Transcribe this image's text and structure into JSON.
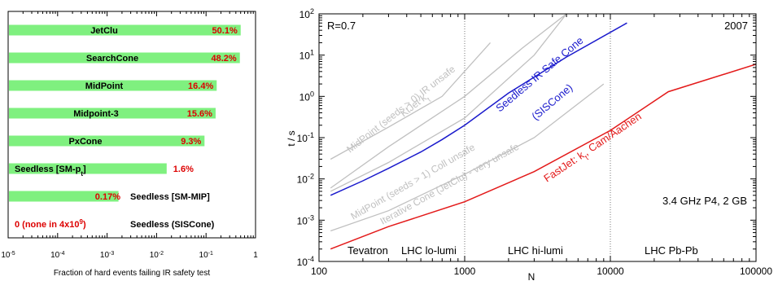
{
  "chart_data": [
    {
      "type": "bar",
      "orientation": "horizontal",
      "x_scale": "log",
      "xlim": [
        1e-05,
        1
      ],
      "xlabel": "Fraction of hard events failing IR safety test",
      "xticks": [
        {
          "value": 1e-05,
          "base": "10",
          "exp": "-5"
        },
        {
          "value": 0.0001,
          "base": "10",
          "exp": "-4"
        },
        {
          "value": 0.001,
          "base": "10",
          "exp": "-3"
        },
        {
          "value": 0.01,
          "base": "10",
          "exp": "-2"
        },
        {
          "value": 0.1,
          "base": "10",
          "exp": "-1"
        },
        {
          "value": 1,
          "base": "1",
          "exp": ""
        }
      ],
      "bar_color": "#7ff07f",
      "value_label_color": "#dd0000",
      "bars": [
        {
          "name": "JetClu",
          "sub": "",
          "value": 0.501,
          "value_label": "50.1%",
          "label_side": "inside"
        },
        {
          "name": "SearchCone",
          "sub": "",
          "value": 0.482,
          "value_label": "48.2%",
          "label_side": "inside"
        },
        {
          "name": "MidPoint",
          "sub": "",
          "value": 0.164,
          "value_label": "16.4%",
          "label_side": "inside"
        },
        {
          "name": "Midpoint-3",
          "sub": "",
          "value": 0.156,
          "value_label": "15.6%",
          "label_side": "inside"
        },
        {
          "name": "PxCone",
          "sub": "",
          "value": 0.093,
          "value_label": "9.3%",
          "label_side": "inside"
        },
        {
          "name": "Seedless [SM-p",
          "sub": "t",
          "name_end": "]",
          "value": 0.016,
          "value_label": "1.6%",
          "label_side": "outside"
        },
        {
          "name": "Seedless [SM-MIP]",
          "sub": "",
          "value": 0.0017,
          "value_label": "0.17%",
          "label_side": "right_name"
        },
        {
          "name": "Seedless (SISCone)",
          "sub": "",
          "value": null,
          "value_label": "0 (none in 4x10",
          "value_label_sup": "9",
          "value_label_end": ")",
          "label_side": "none"
        }
      ]
    },
    {
      "type": "line",
      "x_scale": "log",
      "y_scale": "log",
      "xlim": [
        100,
        100000
      ],
      "ylim": [
        0.0001,
        100
      ],
      "xlabel": "N",
      "ylabel": "t / s",
      "grid": "dotted at x=1000,10000",
      "annotations": {
        "top_left": "R=0.7",
        "top_right": "2007",
        "machine": "3.4 GHz P4, 2 GB",
        "regions": [
          "Tevatron",
          "LHC lo-lumi",
          "LHC hi-lumi",
          "LHC Pb-Pb"
        ]
      },
      "xticks": [
        {
          "value": 100,
          "label": "100"
        },
        {
          "value": 1000,
          "label": "1000"
        },
        {
          "value": 10000,
          "label": "10000"
        },
        {
          "value": 100000,
          "label": "100000"
        }
      ],
      "yticks": [
        {
          "value": 0.0001,
          "exp": "-4"
        },
        {
          "value": 0.001,
          "exp": "-3"
        },
        {
          "value": 0.01,
          "exp": "-2"
        },
        {
          "value": 0.1,
          "exp": "-1"
        },
        {
          "value": 1,
          "exp": "0"
        },
        {
          "value": 10,
          "exp": "1"
        },
        {
          "value": 100,
          "exp": "2"
        }
      ],
      "series": [
        {
          "name": "Seedless IR Safe Cone",
          "name2": "(SISCone)",
          "color": "#1a1acc",
          "x": [
            120,
            200,
            300,
            500,
            700,
            1000,
            2000,
            5000,
            13000
          ],
          "y": [
            0.004,
            0.009,
            0.018,
            0.045,
            0.09,
            0.2,
            1.2,
            9,
            60
          ]
        },
        {
          "name": "FastJet: k",
          "sub": "t",
          "name_end": ", Cam/Aachen",
          "color": "#e31a1a",
          "x": [
            120,
            300,
            1000,
            3000,
            10000,
            25000,
            100000
          ],
          "y": [
            0.0002,
            0.0007,
            0.0028,
            0.015,
            0.15,
            1.3,
            6
          ]
        },
        {
          "name": "MidPoint (seeds > 0) IR unsafe",
          "color": "#c0c0c0",
          "x": [
            120,
            300,
            700,
            1500
          ],
          "y": [
            0.03,
            0.18,
            1.0,
            20
          ]
        },
        {
          "name": "KtJet k",
          "sub": "t",
          "color": "#c0c0c0",
          "x": [
            120,
            300,
            1000,
            2500,
            5000
          ],
          "y": [
            0.006,
            0.06,
            1.0,
            15,
            100
          ]
        },
        {
          "name": "MidPoint (seeds > 1) Coll unsafe",
          "color": "#c0c0c0",
          "x": [
            120,
            300,
            1000,
            3000,
            5000
          ],
          "y": [
            0.005,
            0.025,
            0.3,
            10,
            100
          ]
        },
        {
          "name": "Iterative Cone (JetClu) - very unsafe",
          "color": "#c0c0c0",
          "x": [
            120,
            300,
            1000,
            3000,
            9000
          ],
          "y": [
            0.00055,
            0.0017,
            0.013,
            0.1,
            2.0
          ]
        }
      ]
    }
  ]
}
